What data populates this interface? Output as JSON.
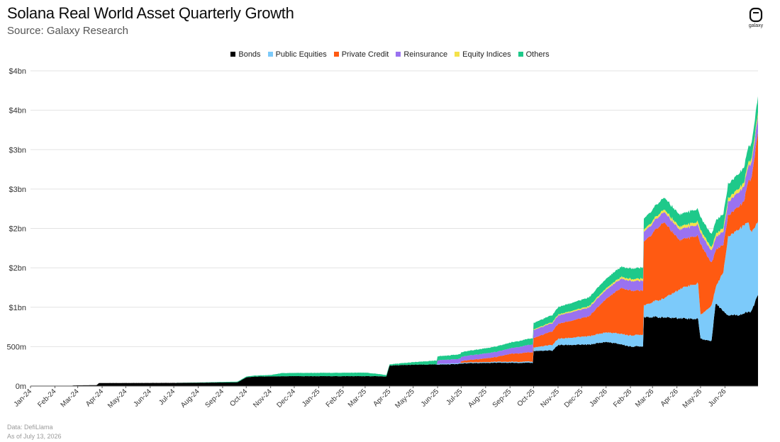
{
  "header": {
    "title": "Solana Real World Asset Quarterly Growth",
    "subtitle": "Source: Galaxy Research",
    "logo_text": "galaxy"
  },
  "footer": {
    "data_note": "Data: DefiLlama",
    "date_note": "As of July 13, 2026"
  },
  "colors": {
    "Bonds": "#000000",
    "Public Equities": "#7ccafa",
    "Private Credit": "#ff5a12",
    "Reinsurance": "#9a72f0",
    "Equity Indices": "#f4e24a",
    "Others": "#1ec98a"
  },
  "chart_data": {
    "type": "area",
    "stacked": true,
    "title": "Solana Real World Asset Quarterly Growth",
    "y_tick_labels": [
      "0m",
      "500m",
      "$1bn",
      "$2bn",
      "$2bn",
      "$3bn",
      "$3bn",
      "$4bn",
      "$4bn"
    ],
    "y_tick_values": [
      0,
      500,
      1000,
      1500,
      2000,
      2500,
      3000,
      3500,
      4000
    ],
    "ylim": [
      0,
      4000
    ],
    "y_unit": "millions USD",
    "x_tick_labels": [
      "Jan-24",
      "Feb-24",
      "Mar-24",
      "Apr-24",
      "May-24",
      "Jun-24",
      "Jul-24",
      "Aug-24",
      "Sep-24",
      "Oct-24",
      "Nov-24",
      "Dec-24",
      "Jan-25",
      "Feb-25",
      "Mar-25",
      "Apr-25",
      "May-25",
      "Jun-25",
      "Jul-25",
      "Aug-25",
      "Sep-25",
      "Oct-25",
      "Nov-25",
      "Dec-25",
      "Jan-26",
      "Feb-26",
      "Mar-26",
      "Apr-26",
      "May-26",
      "Jun-26"
    ],
    "x_start": "2024-01-01",
    "x_end": "2026-07-13",
    "legend_position": "top-center",
    "grid": true,
    "series": [
      {
        "name": "Bonds",
        "points": [
          [
            "2024-01-01",
            0
          ],
          [
            "2024-02-20",
            0
          ],
          [
            "2024-02-25",
            8
          ],
          [
            "2024-03-25",
            12
          ],
          [
            "2024-03-28",
            38
          ],
          [
            "2024-07-01",
            40
          ],
          [
            "2024-08-31",
            45
          ],
          [
            "2024-09-20",
            48
          ],
          [
            "2024-10-01",
            110
          ],
          [
            "2024-10-10",
            120
          ],
          [
            "2024-12-01",
            125
          ],
          [
            "2025-03-14",
            125
          ],
          [
            "2025-03-28",
            120
          ],
          [
            "2025-04-01",
            260
          ],
          [
            "2025-05-01",
            270
          ],
          [
            "2025-06-15",
            275
          ],
          [
            "2025-07-10",
            290
          ],
          [
            "2025-08-15",
            295
          ],
          [
            "2025-09-30",
            295
          ],
          [
            "2025-10-01",
            445
          ],
          [
            "2025-10-25",
            450
          ],
          [
            "2025-11-01",
            520
          ],
          [
            "2025-12-10",
            525
          ],
          [
            "2026-01-01",
            560
          ],
          [
            "2026-01-20",
            530
          ],
          [
            "2026-02-01",
            500
          ],
          [
            "2026-02-17",
            505
          ],
          [
            "2026-02-18",
            880
          ],
          [
            "2026-04-10",
            860
          ],
          [
            "2026-04-28",
            850
          ],
          [
            "2026-05-01",
            600
          ],
          [
            "2026-05-15",
            570
          ],
          [
            "2026-05-20",
            1050
          ],
          [
            "2026-06-05",
            900
          ],
          [
            "2026-06-20",
            905
          ],
          [
            "2026-07-05",
            950
          ],
          [
            "2026-07-13",
            1160
          ]
        ]
      },
      {
        "name": "Public Equities",
        "points": [
          [
            "2024-01-01",
            0
          ],
          [
            "2025-05-31",
            0
          ],
          [
            "2025-06-01",
            10
          ],
          [
            "2025-07-01",
            10
          ],
          [
            "2025-09-30",
            15
          ],
          [
            "2025-10-01",
            45
          ],
          [
            "2025-11-01",
            80
          ],
          [
            "2025-12-15",
            110
          ],
          [
            "2026-01-15",
            130
          ],
          [
            "2026-02-17",
            150
          ],
          [
            "2026-02-18",
            150
          ],
          [
            "2026-03-15",
            240
          ],
          [
            "2026-04-10",
            400
          ],
          [
            "2026-04-28",
            450
          ],
          [
            "2026-05-01",
            300
          ],
          [
            "2026-05-15",
            450
          ],
          [
            "2026-05-20",
            200
          ],
          [
            "2026-05-30",
            500
          ],
          [
            "2026-06-05",
            1000
          ],
          [
            "2026-06-30",
            1150
          ],
          [
            "2026-07-05",
            1000
          ],
          [
            "2026-07-13",
            920
          ]
        ]
      },
      {
        "name": "Private Credit",
        "points": [
          [
            "2024-01-01",
            0
          ],
          [
            "2025-06-30",
            0
          ],
          [
            "2025-07-01",
            20
          ],
          [
            "2025-08-15",
            60
          ],
          [
            "2025-09-01",
            100
          ],
          [
            "2025-10-01",
            120
          ],
          [
            "2025-11-01",
            190
          ],
          [
            "2025-12-10",
            250
          ],
          [
            "2026-01-10",
            500
          ],
          [
            "2026-01-20",
            580
          ],
          [
            "2026-02-17",
            560
          ],
          [
            "2026-02-18",
            800
          ],
          [
            "2026-03-15",
            970
          ],
          [
            "2026-04-05",
            620
          ],
          [
            "2026-04-28",
            600
          ],
          [
            "2026-05-01",
            900
          ],
          [
            "2026-05-15",
            540
          ],
          [
            "2026-06-05",
            270
          ],
          [
            "2026-06-25",
            300
          ],
          [
            "2026-07-05",
            700
          ],
          [
            "2026-07-13",
            1150
          ]
        ]
      },
      {
        "name": "Reinsurance",
        "points": [
          [
            "2024-01-01",
            0
          ],
          [
            "2025-05-31",
            0
          ],
          [
            "2025-06-01",
            45
          ],
          [
            "2025-07-01",
            55
          ],
          [
            "2025-09-01",
            70
          ],
          [
            "2025-10-01",
            100
          ],
          [
            "2025-12-01",
            110
          ],
          [
            "2026-02-01",
            120
          ],
          [
            "2026-03-15",
            130
          ],
          [
            "2026-05-01",
            140
          ],
          [
            "2026-06-01",
            170
          ],
          [
            "2026-07-13",
            200
          ]
        ]
      },
      {
        "name": "Equity Indices",
        "points": [
          [
            "2024-01-01",
            0
          ],
          [
            "2025-09-30",
            0
          ],
          [
            "2025-10-01",
            10
          ],
          [
            "2026-01-01",
            20
          ],
          [
            "2026-03-01",
            30
          ],
          [
            "2026-05-01",
            40
          ],
          [
            "2026-07-13",
            50
          ]
        ]
      },
      {
        "name": "Others",
        "points": [
          [
            "2024-01-01",
            0
          ],
          [
            "2024-07-01",
            0
          ],
          [
            "2024-10-01",
            10
          ],
          [
            "2024-11-01",
            18
          ],
          [
            "2024-11-15",
            40
          ],
          [
            "2025-03-01",
            45
          ],
          [
            "2025-04-01",
            15
          ],
          [
            "2025-06-01",
            50
          ],
          [
            "2025-10-01",
            80
          ],
          [
            "2026-01-01",
            120
          ],
          [
            "2026-02-18",
            140
          ],
          [
            "2026-03-15",
            150
          ],
          [
            "2026-05-01",
            160
          ],
          [
            "2026-07-13",
            200
          ]
        ]
      }
    ]
  }
}
